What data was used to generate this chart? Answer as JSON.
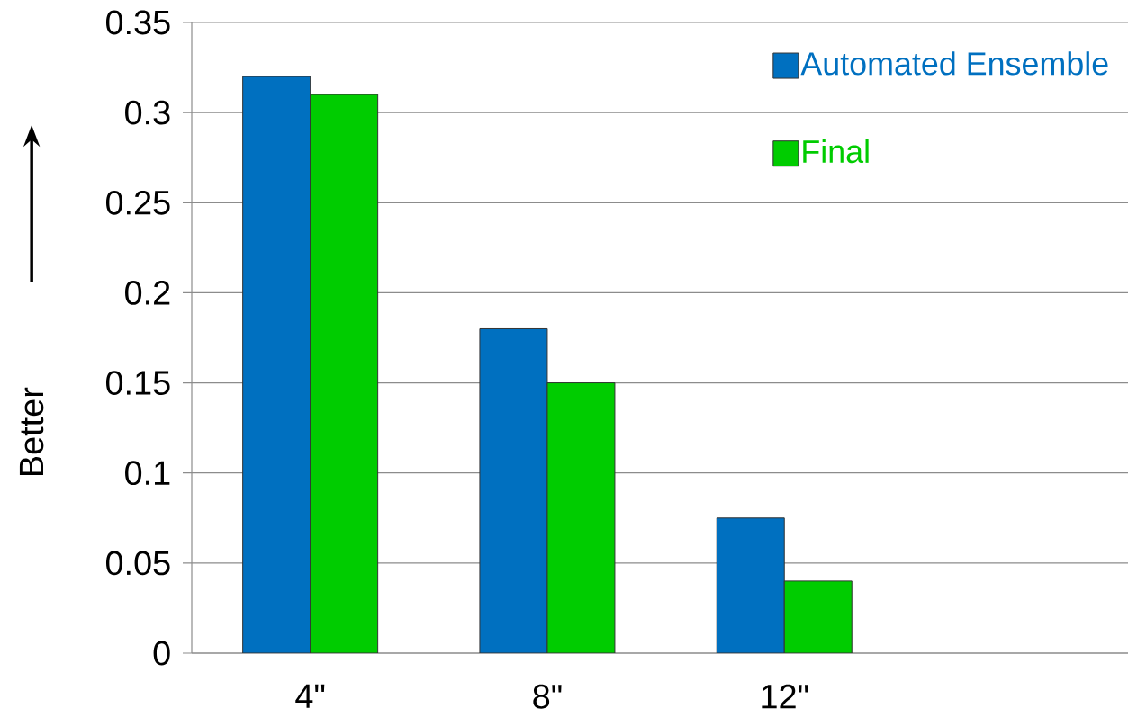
{
  "chart_data": {
    "type": "bar",
    "categories": [
      "4\"",
      "8\"",
      "12\"",
      null
    ],
    "series": [
      {
        "name": "Automated Ensemble",
        "color": "#0070c0",
        "values": [
          0.32,
          0.18,
          0.075,
          null
        ]
      },
      {
        "name": "Final",
        "color": "#00cc00",
        "values": [
          0.31,
          0.15,
          0.04,
          null
        ]
      }
    ],
    "ylabel": "Better",
    "ylim": [
      0,
      0.35
    ],
    "yticks": [
      0,
      0.05,
      0.1,
      0.15,
      0.2,
      0.25,
      0.3,
      0.35
    ],
    "grid": "y",
    "legend": "top right"
  }
}
